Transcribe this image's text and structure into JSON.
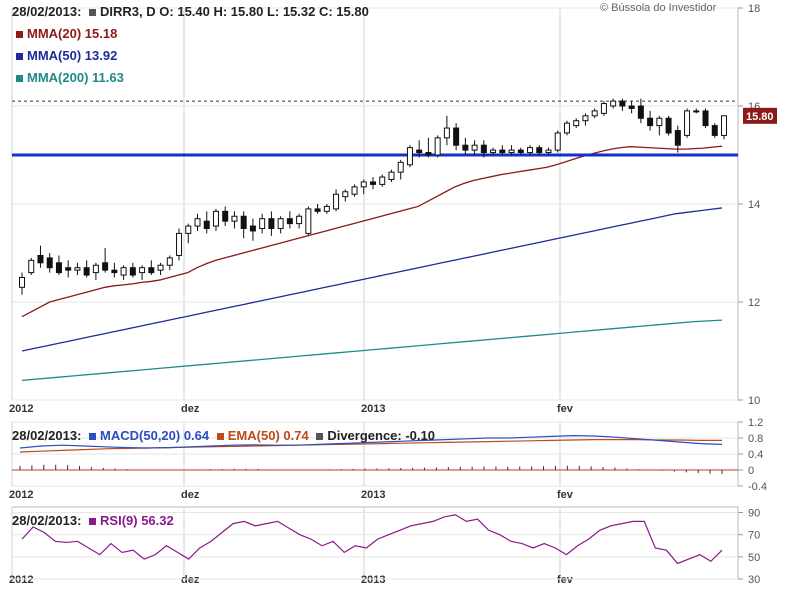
{
  "credit": "© Bússola do Investidor",
  "header": {
    "date": "28/02/2013:",
    "ticker": "DIRR3, D",
    "ohlc": "O: 15.40  H: 15.80  L: 15.32  C: 15.80",
    "mma20": "MMA(20) 15.18",
    "mma50": "MMA(50) 13.92",
    "mma200": "MMA(200) 11.63"
  },
  "macd_header": {
    "date": "28/02/2013:",
    "macd": "MACD(50,20) 0.64",
    "ema": "EMA(50) 0.74",
    "divergence": "Divergence: -0.10"
  },
  "rsi_header": {
    "date": "28/02/2013:",
    "rsi": "RSI(9) 56.32"
  },
  "colors": {
    "mma20": "#8b1a1a",
    "mma50": "#1f2b9a",
    "mma200": "#1f8a86",
    "support": "#1530c8",
    "macd": "#2a4fc0",
    "ema": "#c04a1a",
    "divergence": "#555555",
    "rsi": "#8a1a8a",
    "last_price_bg": "#8b1a1a"
  },
  "chart_data": [
    {
      "type": "candlestick",
      "name": "price",
      "x_ticks": [
        "2012",
        "dez",
        "2013",
        "fev"
      ],
      "y_ticks": [
        10,
        12,
        14,
        16,
        18
      ],
      "ylim": [
        10,
        18
      ],
      "last_price_label": "15.80",
      "support_level": 15.0,
      "candles": [
        {
          "o": 12.3,
          "h": 12.6,
          "l": 12.15,
          "c": 12.5
        },
        {
          "o": 12.6,
          "h": 12.9,
          "l": 12.55,
          "c": 12.85
        },
        {
          "o": 12.95,
          "h": 13.15,
          "l": 12.7,
          "c": 12.8
        },
        {
          "o": 12.9,
          "h": 13.0,
          "l": 12.6,
          "c": 12.7
        },
        {
          "o": 12.8,
          "h": 12.95,
          "l": 12.55,
          "c": 12.6
        },
        {
          "o": 12.7,
          "h": 12.85,
          "l": 12.5,
          "c": 12.65
        },
        {
          "o": 12.65,
          "h": 12.8,
          "l": 12.55,
          "c": 12.7
        },
        {
          "o": 12.7,
          "h": 12.85,
          "l": 12.5,
          "c": 12.55
        },
        {
          "o": 12.6,
          "h": 12.8,
          "l": 12.45,
          "c": 12.75
        },
        {
          "o": 12.8,
          "h": 13.1,
          "l": 12.6,
          "c": 12.65
        },
        {
          "o": 12.65,
          "h": 12.8,
          "l": 12.5,
          "c": 12.6
        },
        {
          "o": 12.55,
          "h": 12.75,
          "l": 12.45,
          "c": 12.7
        },
        {
          "o": 12.7,
          "h": 12.8,
          "l": 12.5,
          "c": 12.55
        },
        {
          "o": 12.6,
          "h": 12.75,
          "l": 12.45,
          "c": 12.7
        },
        {
          "o": 12.7,
          "h": 12.85,
          "l": 12.55,
          "c": 12.6
        },
        {
          "o": 12.65,
          "h": 12.8,
          "l": 12.55,
          "c": 12.75
        },
        {
          "o": 12.75,
          "h": 12.95,
          "l": 12.65,
          "c": 12.9
        },
        {
          "o": 12.95,
          "h": 13.5,
          "l": 12.85,
          "c": 13.4
        },
        {
          "o": 13.4,
          "h": 13.6,
          "l": 13.2,
          "c": 13.55
        },
        {
          "o": 13.55,
          "h": 13.8,
          "l": 13.45,
          "c": 13.7
        },
        {
          "o": 13.65,
          "h": 13.85,
          "l": 13.4,
          "c": 13.5
        },
        {
          "o": 13.55,
          "h": 13.9,
          "l": 13.45,
          "c": 13.85
        },
        {
          "o": 13.85,
          "h": 13.95,
          "l": 13.55,
          "c": 13.65
        },
        {
          "o": 13.65,
          "h": 13.85,
          "l": 13.5,
          "c": 13.75
        },
        {
          "o": 13.75,
          "h": 13.85,
          "l": 13.3,
          "c": 13.5
        },
        {
          "o": 13.55,
          "h": 13.7,
          "l": 13.25,
          "c": 13.45
        },
        {
          "o": 13.5,
          "h": 13.8,
          "l": 13.4,
          "c": 13.7
        },
        {
          "o": 13.7,
          "h": 13.85,
          "l": 13.35,
          "c": 13.5
        },
        {
          "o": 13.5,
          "h": 13.75,
          "l": 13.4,
          "c": 13.7
        },
        {
          "o": 13.7,
          "h": 13.85,
          "l": 13.5,
          "c": 13.6
        },
        {
          "o": 13.6,
          "h": 13.8,
          "l": 13.5,
          "c": 13.75
        },
        {
          "o": 13.4,
          "h": 13.95,
          "l": 13.35,
          "c": 13.9
        },
        {
          "o": 13.9,
          "h": 14.0,
          "l": 13.8,
          "c": 13.85
        },
        {
          "o": 13.85,
          "h": 14.0,
          "l": 13.8,
          "c": 13.95
        },
        {
          "o": 13.9,
          "h": 14.3,
          "l": 13.85,
          "c": 14.2
        },
        {
          "o": 14.15,
          "h": 14.3,
          "l": 14.05,
          "c": 14.25
        },
        {
          "o": 14.2,
          "h": 14.4,
          "l": 14.15,
          "c": 14.35
        },
        {
          "o": 14.35,
          "h": 14.5,
          "l": 14.2,
          "c": 14.45
        },
        {
          "o": 14.45,
          "h": 14.55,
          "l": 14.3,
          "c": 14.4
        },
        {
          "o": 14.4,
          "h": 14.6,
          "l": 14.35,
          "c": 14.55
        },
        {
          "o": 14.5,
          "h": 14.7,
          "l": 14.45,
          "c": 14.65
        },
        {
          "o": 14.65,
          "h": 14.9,
          "l": 14.5,
          "c": 14.85
        },
        {
          "o": 14.8,
          "h": 15.2,
          "l": 14.75,
          "c": 15.15
        },
        {
          "o": 15.1,
          "h": 15.3,
          "l": 14.95,
          "c": 15.05
        },
        {
          "o": 15.05,
          "h": 15.35,
          "l": 14.95,
          "c": 15.0
        },
        {
          "o": 15.0,
          "h": 15.4,
          "l": 14.95,
          "c": 15.35
        },
        {
          "o": 15.35,
          "h": 15.8,
          "l": 15.2,
          "c": 15.55
        },
        {
          "o": 15.55,
          "h": 15.65,
          "l": 15.1,
          "c": 15.2
        },
        {
          "o": 15.2,
          "h": 15.35,
          "l": 15.0,
          "c": 15.1
        },
        {
          "o": 15.1,
          "h": 15.3,
          "l": 15.0,
          "c": 15.2
        },
        {
          "o": 15.2,
          "h": 15.3,
          "l": 14.95,
          "c": 15.05
        },
        {
          "o": 15.05,
          "h": 15.15,
          "l": 15.0,
          "c": 15.1
        },
        {
          "o": 15.1,
          "h": 15.2,
          "l": 15.0,
          "c": 15.05
        },
        {
          "o": 15.05,
          "h": 15.2,
          "l": 15.0,
          "c": 15.1
        },
        {
          "o": 15.1,
          "h": 15.15,
          "l": 15.0,
          "c": 15.05
        },
        {
          "o": 15.05,
          "h": 15.2,
          "l": 15.0,
          "c": 15.15
        },
        {
          "o": 15.15,
          "h": 15.2,
          "l": 15.0,
          "c": 15.05
        },
        {
          "o": 15.05,
          "h": 15.15,
          "l": 15.0,
          "c": 15.1
        },
        {
          "o": 15.1,
          "h": 15.5,
          "l": 15.05,
          "c": 15.45
        },
        {
          "o": 15.45,
          "h": 15.7,
          "l": 15.4,
          "c": 15.65
        },
        {
          "o": 15.6,
          "h": 15.75,
          "l": 15.55,
          "c": 15.7
        },
        {
          "o": 15.7,
          "h": 15.85,
          "l": 15.6,
          "c": 15.8
        },
        {
          "o": 15.8,
          "h": 15.95,
          "l": 15.75,
          "c": 15.9
        },
        {
          "o": 15.85,
          "h": 16.1,
          "l": 15.8,
          "c": 16.05
        },
        {
          "o": 16.0,
          "h": 16.15,
          "l": 15.95,
          "c": 16.1
        },
        {
          "o": 16.1,
          "h": 16.15,
          "l": 15.9,
          "c": 16.0
        },
        {
          "o": 16.0,
          "h": 16.1,
          "l": 15.85,
          "c": 15.95
        },
        {
          "o": 16.0,
          "h": 16.15,
          "l": 15.65,
          "c": 15.75
        },
        {
          "o": 15.75,
          "h": 15.9,
          "l": 15.5,
          "c": 15.6
        },
        {
          "o": 15.6,
          "h": 15.8,
          "l": 15.4,
          "c": 15.75
        },
        {
          "o": 15.75,
          "h": 15.8,
          "l": 15.4,
          "c": 15.45
        },
        {
          "o": 15.5,
          "h": 15.6,
          "l": 15.05,
          "c": 15.2
        },
        {
          "o": 15.4,
          "h": 15.95,
          "l": 15.35,
          "c": 15.9
        },
        {
          "o": 15.9,
          "h": 15.95,
          "l": 15.85,
          "c": 15.9
        },
        {
          "o": 15.9,
          "h": 15.95,
          "l": 15.55,
          "c": 15.6
        },
        {
          "o": 15.6,
          "h": 15.65,
          "l": 15.35,
          "c": 15.4
        },
        {
          "o": 15.4,
          "h": 15.8,
          "l": 15.32,
          "c": 15.8
        }
      ],
      "series": [
        {
          "name": "MMA(20)",
          "values": [
            11.7,
            11.8,
            11.9,
            12.0,
            12.05,
            12.1,
            12.15,
            12.2,
            12.25,
            12.3,
            12.33,
            12.35,
            12.37,
            12.4,
            12.42,
            12.45,
            12.5,
            12.55,
            12.6,
            12.7,
            12.78,
            12.85,
            12.9,
            12.95,
            13.0,
            13.05,
            13.1,
            13.15,
            13.2,
            13.25,
            13.3,
            13.35,
            13.4,
            13.45,
            13.5,
            13.55,
            13.6,
            13.65,
            13.7,
            13.75,
            13.8,
            13.85,
            13.9,
            13.95,
            14.05,
            14.15,
            14.25,
            14.35,
            14.42,
            14.48,
            14.52,
            14.56,
            14.6,
            14.63,
            14.66,
            14.69,
            14.72,
            14.75,
            14.8,
            14.86,
            14.92,
            14.98,
            15.03,
            15.08,
            15.12,
            15.15,
            15.17,
            15.16,
            15.15,
            15.14,
            15.13,
            15.12,
            15.12,
            15.13,
            15.14,
            15.16,
            15.18
          ]
        },
        {
          "name": "MMA(50)",
          "values": [
            11.0,
            11.05,
            11.1,
            11.15,
            11.2,
            11.25,
            11.3,
            11.35,
            11.4,
            11.45,
            11.5,
            11.55,
            11.6,
            11.65,
            11.7,
            11.75,
            11.8,
            11.85,
            11.9,
            11.95,
            12.0,
            12.05,
            12.1,
            12.15,
            12.2,
            12.25,
            12.3,
            12.35,
            12.4,
            12.45,
            12.5,
            12.55,
            12.6,
            12.65,
            12.7,
            12.75,
            12.8,
            12.85,
            12.9,
            12.95,
            13.0,
            13.05,
            13.1,
            13.15,
            13.2,
            13.25,
            13.3,
            13.35,
            13.4,
            13.45,
            13.5,
            13.55,
            13.6,
            13.65,
            13.7,
            13.75,
            13.8,
            13.83,
            13.86,
            13.89,
            13.92
          ]
        },
        {
          "name": "MMA(200)",
          "values": [
            10.4,
            10.45,
            10.5,
            10.55,
            10.6,
            10.65,
            10.7,
            10.75,
            10.8,
            10.85,
            10.9,
            10.95,
            11.0,
            11.05,
            11.1,
            11.15,
            11.2,
            11.25,
            11.3,
            11.35,
            11.4,
            11.45,
            11.5,
            11.55,
            11.6,
            11.63
          ]
        }
      ]
    },
    {
      "type": "line",
      "name": "macd",
      "x_ticks": [
        "2012",
        "dez",
        "2013",
        "fev"
      ],
      "y_ticks": [
        -0.4,
        0,
        0.4,
        0.8,
        1.2
      ],
      "ylim": [
        -0.4,
        1.2
      ],
      "series": [
        {
          "name": "MACD(50,20)",
          "values": [
            0.55,
            0.6,
            0.62,
            0.6,
            0.58,
            0.56,
            0.55,
            0.56,
            0.58,
            0.6,
            0.62,
            0.63,
            0.62,
            0.62,
            0.64,
            0.66,
            0.68,
            0.7,
            0.72,
            0.74,
            0.76,
            0.78,
            0.8,
            0.8,
            0.82,
            0.84,
            0.86,
            0.85,
            0.82,
            0.78,
            0.74,
            0.7,
            0.66,
            0.64
          ]
        },
        {
          "name": "EMA(50)",
          "values": [
            0.45,
            0.47,
            0.49,
            0.51,
            0.53,
            0.54,
            0.55,
            0.56,
            0.57,
            0.58,
            0.59,
            0.6,
            0.61,
            0.62,
            0.63,
            0.64,
            0.65,
            0.66,
            0.67,
            0.68,
            0.69,
            0.7,
            0.71,
            0.72,
            0.73,
            0.74,
            0.75,
            0.76,
            0.76,
            0.76,
            0.75,
            0.75,
            0.74,
            0.74
          ]
        },
        {
          "name": "Divergence",
          "values": [
            0.1,
            0.13,
            0.13,
            0.09,
            0.05,
            0.02,
            0.0,
            0.0,
            0.01,
            0.02,
            0.03,
            0.03,
            0.01,
            0.0,
            0.01,
            0.02,
            0.03,
            0.04,
            0.05,
            0.06,
            0.07,
            0.08,
            0.09,
            0.08,
            0.09,
            0.1,
            0.11,
            0.09,
            0.06,
            0.02,
            -0.01,
            -0.05,
            -0.08,
            -0.1
          ]
        }
      ]
    },
    {
      "type": "line",
      "name": "rsi",
      "x_ticks": [
        "2012",
        "dez",
        "2013",
        "fev"
      ],
      "y_ticks": [
        30,
        50,
        70,
        90
      ],
      "ylim": [
        30,
        95
      ],
      "series": [
        {
          "name": "RSI(9)",
          "values": [
            66,
            77,
            72,
            64,
            63,
            64,
            58,
            52,
            62,
            54,
            56,
            48,
            52,
            60,
            54,
            48,
            58,
            64,
            72,
            80,
            82,
            78,
            80,
            82,
            76,
            70,
            66,
            60,
            64,
            54,
            60,
            58,
            66,
            70,
            74,
            78,
            80,
            82,
            86,
            88,
            82,
            84,
            74,
            70,
            64,
            62,
            58,
            62,
            58,
            52,
            60,
            66,
            74,
            78,
            80,
            82,
            82,
            58,
            56,
            44,
            48,
            52,
            46,
            56
          ]
        }
      ]
    }
  ]
}
